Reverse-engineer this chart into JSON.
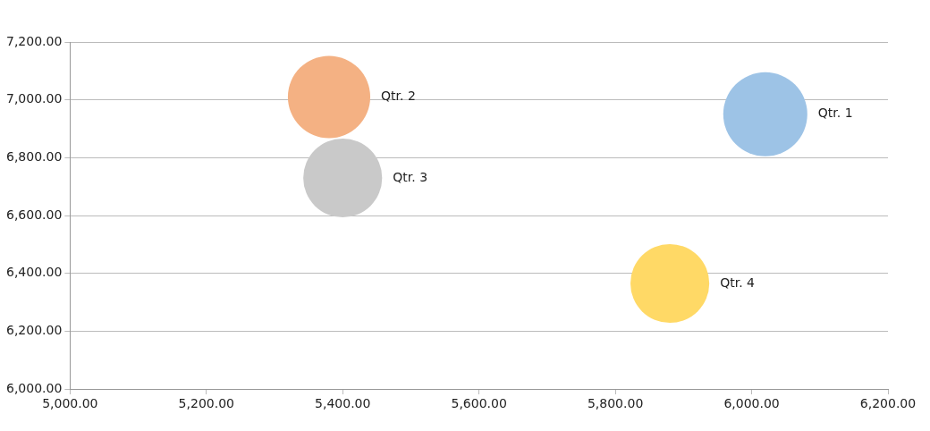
{
  "chart_data": {
    "type": "bubble",
    "xlim": [
      5000,
      6200
    ],
    "ylim": [
      6000,
      7200
    ],
    "xticks": [
      {
        "value": 5000,
        "label": "5,000.00"
      },
      {
        "value": 5200,
        "label": "5,200.00"
      },
      {
        "value": 5400,
        "label": "5,400.00"
      },
      {
        "value": 5600,
        "label": "5,600.00"
      },
      {
        "value": 5800,
        "label": "5,800.00"
      },
      {
        "value": 6000,
        "label": "6,000.00"
      },
      {
        "value": 6200,
        "label": "6,200.00"
      }
    ],
    "yticks": [
      {
        "value": 6000,
        "label": "6,000.00"
      },
      {
        "value": 6200,
        "label": "6,200.00"
      },
      {
        "value": 6400,
        "label": "6,400.00"
      },
      {
        "value": 6600,
        "label": "6,600.00"
      },
      {
        "value": 6800,
        "label": "6,800.00"
      },
      {
        "value": 7000,
        "label": "7,000.00"
      },
      {
        "value": 7200,
        "label": "7,200.00"
      }
    ],
    "grid": "y",
    "legend": false,
    "series": [
      {
        "name": "Qtr. 1",
        "color": "#9dc3e6",
        "x": [
          6020
        ],
        "values": [
          6950
        ],
        "sizes": [
          1
        ]
      },
      {
        "name": "Qtr. 2",
        "color": "#f4b183",
        "x": [
          5380
        ],
        "values": [
          7010
        ],
        "sizes": [
          0.96
        ]
      },
      {
        "name": "Qtr. 3",
        "color": "#c9c9c9",
        "x": [
          5400
        ],
        "values": [
          6730
        ],
        "sizes": [
          0.88
        ]
      },
      {
        "name": "Qtr. 4",
        "color": "#ffd966",
        "x": [
          5880
        ],
        "values": [
          6365
        ],
        "sizes": [
          0.88
        ]
      }
    ]
  }
}
